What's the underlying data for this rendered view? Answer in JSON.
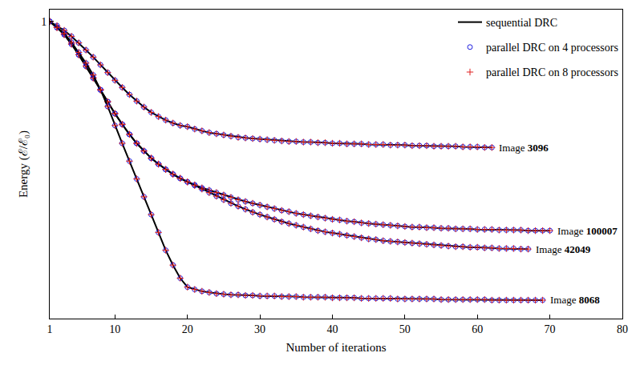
{
  "chart_data": {
    "type": "line",
    "x_label": "Number of iterations",
    "y_label": "Energy (ℰ/ℰ₀)",
    "xlim": [
      1,
      80
    ],
    "xticks": [
      1,
      10,
      20,
      30,
      40,
      50,
      60,
      70,
      80
    ],
    "ylim": [
      0.5,
      1.02
    ],
    "yticks": [
      1
    ],
    "grid": false,
    "legend": "top right",
    "series": [
      {
        "name": "sequential DRC",
        "color": "#000000",
        "line_style": "solid"
      },
      {
        "name": "parallel DRC on 4 processors",
        "color": "#2020e0",
        "marker": "circle-open"
      },
      {
        "name": "parallel DRC on 8 processors",
        "color": "#e02020",
        "marker": "cross"
      }
    ],
    "x": [
      1,
      2,
      3,
      4,
      5,
      6,
      7,
      8,
      9,
      10,
      11,
      12,
      13,
      14,
      15,
      16,
      17,
      18,
      19,
      20,
      21,
      22,
      23,
      24,
      25,
      26,
      27,
      28,
      29,
      30,
      31,
      32,
      33,
      34,
      35,
      36,
      37,
      38,
      39,
      40,
      41,
      42,
      43,
      44,
      45,
      46,
      47,
      48,
      49,
      50,
      51,
      52,
      53,
      54,
      55,
      56,
      57,
      58,
      59,
      60,
      61,
      62,
      63,
      64,
      65,
      66,
      67,
      68,
      69,
      70
    ],
    "curves": [
      {
        "label": "Image 3096",
        "values": [
          1,
          0.993,
          0.985,
          0.975,
          0.964,
          0.952,
          0.94,
          0.927,
          0.914,
          0.901,
          0.889,
          0.877,
          0.866,
          0.856,
          0.847,
          0.84,
          0.834,
          0.829,
          0.825,
          0.823,
          0.819,
          0.816,
          0.813,
          0.811,
          0.809,
          0.807,
          0.805,
          0.804,
          0.803,
          0.802,
          0.801,
          0.8,
          0.799,
          0.798,
          0.798,
          0.797,
          0.797,
          0.796,
          0.796,
          0.795,
          0.795,
          0.794,
          0.794,
          0.794,
          0.793,
          0.793,
          0.793,
          0.792,
          0.792,
          0.792,
          0.791,
          0.791,
          0.791,
          0.79,
          0.79,
          0.79,
          0.79,
          0.789,
          0.789,
          0.789,
          0.788,
          0.788,
          null,
          null,
          null,
          null,
          null,
          null,
          null,
          null
        ]
      },
      {
        "label": "Image 100007",
        "values": [
          1,
          0.99,
          0.978,
          0.962,
          0.944,
          0.925,
          0.905,
          0.885,
          0.865,
          0.845,
          0.827,
          0.81,
          0.795,
          0.782,
          0.77,
          0.76,
          0.751,
          0.743,
          0.736,
          0.73,
          0.725,
          0.72,
          0.716,
          0.712,
          0.708,
          0.704,
          0.7,
          0.697,
          0.694,
          0.691,
          0.688,
          0.685,
          0.682,
          0.68,
          0.677,
          0.675,
          0.673,
          0.671,
          0.669,
          0.667,
          0.666,
          0.664,
          0.663,
          0.661,
          0.66,
          0.659,
          0.658,
          0.657,
          0.656,
          0.655,
          0.654,
          0.654,
          0.653,
          0.653,
          0.652,
          0.652,
          0.651,
          0.651,
          0.651,
          0.65,
          0.65,
          0.65,
          0.649,
          0.649,
          0.649,
          0.649,
          0.648,
          0.648,
          0.648,
          0.648
        ]
      },
      {
        "label": "Image 42049",
        "values": [
          1,
          0.99,
          0.978,
          0.962,
          0.944,
          0.925,
          0.905,
          0.885,
          0.865,
          0.845,
          0.827,
          0.81,
          0.795,
          0.782,
          0.77,
          0.76,
          0.751,
          0.743,
          0.736,
          0.73,
          0.724,
          0.718,
          0.712,
          0.706,
          0.7,
          0.694,
          0.689,
          0.684,
          0.679,
          0.675,
          0.671,
          0.667,
          0.663,
          0.66,
          0.657,
          0.654,
          0.651,
          0.648,
          0.646,
          0.644,
          0.642,
          0.64,
          0.638,
          0.636,
          0.634,
          0.633,
          0.631,
          0.63,
          0.629,
          0.628,
          0.627,
          0.626,
          0.625,
          0.624,
          0.623,
          0.622,
          0.621,
          0.621,
          0.62,
          0.62,
          0.619,
          0.619,
          0.618,
          0.618,
          0.618,
          0.617,
          0.617,
          null,
          null,
          null
        ]
      },
      {
        "label": "Image 8068",
        "values": [
          1,
          0.99,
          0.98,
          0.965,
          0.948,
          0.93,
          0.91,
          0.885,
          0.857,
          0.825,
          0.795,
          0.765,
          0.735,
          0.705,
          0.675,
          0.645,
          0.615,
          0.59,
          0.568,
          0.553,
          0.549,
          0.546,
          0.544,
          0.542,
          0.541,
          0.54,
          0.54,
          0.539,
          0.539,
          0.538,
          0.538,
          0.538,
          0.537,
          0.537,
          0.537,
          0.536,
          0.536,
          0.536,
          0.536,
          0.535,
          0.535,
          0.535,
          0.535,
          0.534,
          0.534,
          0.534,
          0.534,
          0.534,
          0.533,
          0.533,
          0.533,
          0.533,
          0.533,
          0.533,
          0.532,
          0.532,
          0.532,
          0.532,
          0.532,
          0.532,
          0.532,
          0.531,
          0.531,
          0.531,
          0.531,
          0.531,
          0.531,
          0.531,
          0.531,
          null
        ]
      }
    ]
  }
}
